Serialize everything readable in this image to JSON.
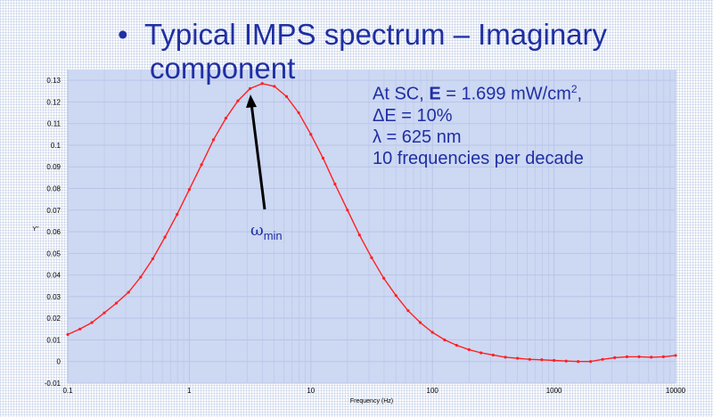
{
  "slide": {
    "title_bullet": "•",
    "title_line1": "Typical IMPS spectrum – Imaginary",
    "title_line2": "component",
    "conditions": {
      "line1_prefix": "At SC, ",
      "line1_bold": "E",
      "line1_value": " = 1.699 mW/cm",
      "line1_sup": "2",
      "line1_suffix": ",",
      "line2": "ΔE = 10%",
      "line3": "λ = 625 nm",
      "line4": "10 frequencies per decade"
    },
    "annotation": {
      "symbol": "ω",
      "subscript": "min"
    }
  },
  "colors": {
    "text": "#1f2fa3",
    "curve": "#ff2020",
    "plot_bg": "#cdd8f3",
    "grid": "#b9c5e6",
    "arrow": "#000000"
  },
  "chart_data": {
    "type": "line",
    "x_scale": "log",
    "xlabel": "Frequency (Hz)",
    "ylabel": "Y''",
    "xlim": [
      0.1,
      10000
    ],
    "ylim": [
      -0.01,
      0.135
    ],
    "xticks": [
      0.1,
      1,
      10,
      100,
      1000,
      10000
    ],
    "xtick_labels": [
      "0.1",
      "1",
      "10",
      "100",
      "1000",
      "10000"
    ],
    "yticks": [
      0.13,
      0.12,
      0.11,
      0.1,
      0.09,
      0.08,
      0.07,
      0.06,
      0.05,
      0.04,
      0.03,
      0.02,
      0.01,
      0,
      -0.01
    ],
    "ytick_labels": [
      "0.13",
      "0.12",
      "0.11",
      "0.1",
      "0.09",
      "0.08",
      "0.07",
      "0.06",
      "0.05",
      "0.04",
      "0.03",
      "0.02",
      "0.01",
      "0",
      "-0.01"
    ],
    "grid": true,
    "series": [
      {
        "x": [
          0.1,
          0.126,
          0.158,
          0.2,
          0.251,
          0.316,
          0.398,
          0.501,
          0.631,
          0.794,
          1.0,
          1.26,
          1.58,
          2.0,
          2.51,
          3.16,
          3.98,
          5.01,
          6.31,
          7.94,
          10.0,
          12.6,
          15.8,
          20.0,
          25.1,
          31.6,
          39.8,
          50.1,
          63.1,
          79.4,
          100,
          126,
          158,
          200,
          251,
          316,
          398,
          501,
          631,
          794,
          1000,
          1260,
          1580,
          2000,
          2510,
          3160,
          3980,
          5010,
          6310,
          7940,
          10000
        ],
        "values": [
          0.0125,
          0.015,
          0.018,
          0.0225,
          0.027,
          0.032,
          0.039,
          0.0475,
          0.0575,
          0.068,
          0.0795,
          0.091,
          0.1025,
          0.1125,
          0.1205,
          0.1262,
          0.1285,
          0.1272,
          0.1225,
          0.115,
          0.105,
          0.094,
          0.082,
          0.07,
          0.0585,
          0.048,
          0.0385,
          0.0305,
          0.0235,
          0.018,
          0.0135,
          0.01,
          0.0075,
          0.0055,
          0.004,
          0.003,
          0.002,
          0.0015,
          0.001,
          0.0008,
          0.0005,
          0.0002,
          0.0,
          0.0,
          0.001,
          0.0018,
          0.0022,
          0.0022,
          0.002,
          0.0022,
          0.0028
        ]
      }
    ]
  }
}
